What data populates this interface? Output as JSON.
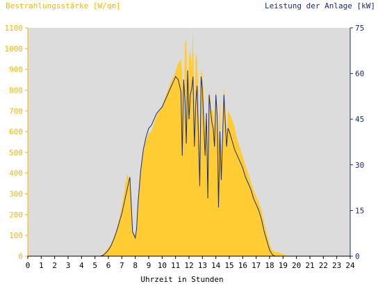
{
  "chart_data": {
    "type": "area",
    "left_title": "Bestrahlungsstärke [W/qm]",
    "right_title": "Leistung der Anlage [kW]",
    "xlabel": "Uhrzeit in Stunden",
    "x_ticks": [
      "0",
      "1",
      "2",
      "3",
      "4",
      "5",
      "6",
      "7",
      "8",
      "9",
      "10",
      "11",
      "12",
      "13",
      "14",
      "15",
      "16",
      "17",
      "18",
      "19",
      "20",
      "21",
      "22",
      "23",
      "24"
    ],
    "xlim": [
      0,
      24
    ],
    "y_left_ticks": [
      "0",
      "100",
      "200",
      "300",
      "400",
      "500",
      "600",
      "700",
      "800",
      "900",
      "1000",
      "1100"
    ],
    "y_left_lim": [
      0,
      1100
    ],
    "y_right_ticks": [
      "0",
      "15",
      "30",
      "45",
      "60",
      "75"
    ],
    "y_right_lim": [
      0,
      75
    ],
    "grid": false,
    "plot_background": "#dcdcdc",
    "series": [
      {
        "name": "Bestrahlungsstärke",
        "axis": "left",
        "kind": "area",
        "color": "#ffcc33",
        "x": [
          5.4,
          5.6,
          5.8,
          6.0,
          6.2,
          6.4,
          6.6,
          6.8,
          7.0,
          7.2,
          7.4,
          7.6,
          7.8,
          8.0,
          8.1,
          8.2,
          8.4,
          8.6,
          8.8,
          9.0,
          9.2,
          9.4,
          9.6,
          9.8,
          10.0,
          10.2,
          10.4,
          10.6,
          10.8,
          11.0,
          11.2,
          11.4,
          11.5,
          11.6,
          11.7,
          11.8,
          11.9,
          12.0,
          12.1,
          12.2,
          12.3,
          12.4,
          12.5,
          12.6,
          12.7,
          12.8,
          12.9,
          13.0,
          13.1,
          13.2,
          13.3,
          13.4,
          13.5,
          13.6,
          13.7,
          13.8,
          13.9,
          14.0,
          14.1,
          14.2,
          14.3,
          14.4,
          14.5,
          14.6,
          14.7,
          14.8,
          14.9,
          15.0,
          15.2,
          15.4,
          15.6,
          15.8,
          16.0,
          16.2,
          16.4,
          16.6,
          16.8,
          17.0,
          17.2,
          17.4,
          17.6,
          17.8,
          18.0,
          18.2,
          18.4,
          18.6,
          18.8,
          19.0,
          19.2,
          19.4,
          19.6
        ],
        "values": [
          0,
          10,
          25,
          40,
          60,
          90,
          130,
          180,
          240,
          320,
          400,
          350,
          120,
          100,
          150,
          250,
          420,
          500,
          560,
          590,
          600,
          640,
          680,
          700,
          720,
          760,
          800,
          830,
          860,
          890,
          930,
          950,
          880,
          600,
          1030,
          1050,
          700,
          950,
          1000,
          900,
          1100,
          700,
          980,
          950,
          800,
          500,
          900,
          880,
          760,
          600,
          700,
          400,
          800,
          760,
          700,
          700,
          600,
          800,
          700,
          560,
          760,
          450,
          600,
          820,
          700,
          600,
          700,
          690,
          660,
          620,
          560,
          520,
          480,
          440,
          400,
          360,
          320,
          290,
          260,
          220,
          160,
          110,
          60,
          30,
          20,
          20,
          15,
          10,
          5,
          0,
          0
        ]
      },
      {
        "name": "Leistung der Anlage",
        "axis": "right",
        "kind": "line",
        "color": "#1f2d6e",
        "x": [
          5.4,
          5.6,
          5.8,
          6.0,
          6.2,
          6.4,
          6.6,
          6.8,
          7.0,
          7.2,
          7.4,
          7.6,
          7.8,
          8.0,
          8.1,
          8.2,
          8.4,
          8.6,
          8.8,
          9.0,
          9.2,
          9.4,
          9.6,
          9.8,
          10.0,
          10.2,
          10.4,
          10.6,
          10.8,
          11.0,
          11.2,
          11.4,
          11.5,
          11.6,
          11.7,
          11.8,
          11.9,
          12.0,
          12.1,
          12.2,
          12.3,
          12.4,
          12.5,
          12.6,
          12.7,
          12.8,
          12.9,
          13.0,
          13.1,
          13.2,
          13.3,
          13.4,
          13.5,
          13.6,
          13.7,
          13.8,
          13.9,
          14.0,
          14.1,
          14.2,
          14.3,
          14.4,
          14.5,
          14.6,
          14.7,
          14.8,
          14.9,
          15.0,
          15.2,
          15.4,
          15.6,
          15.8,
          16.0,
          16.2,
          16.4,
          16.6,
          16.8,
          17.0,
          17.2,
          17.4,
          17.6,
          17.8,
          18.0,
          18.2,
          18.4,
          18.6,
          18.8,
          19.0,
          19.2,
          19.4,
          19.6
        ],
        "values": [
          0,
          0.3,
          1,
          2,
          3.5,
          5.5,
          8,
          11,
          14,
          18,
          22,
          26,
          8,
          6,
          9,
          17,
          28,
          35,
          39,
          42,
          43,
          45,
          47,
          48,
          49,
          51,
          53,
          55,
          57,
          59,
          58,
          54,
          33,
          58,
          51,
          37,
          61,
          45,
          53,
          55,
          59,
          36,
          50,
          56,
          40,
          23,
          59,
          55,
          43,
          33,
          47,
          19,
          53,
          48,
          44,
          42,
          36,
          53,
          46,
          16,
          41,
          25,
          39,
          53,
          44,
          36,
          42,
          41,
          38,
          35,
          33,
          31,
          29,
          26,
          24,
          22,
          19,
          17,
          15,
          12,
          8,
          5,
          2,
          0.5,
          0,
          0,
          0,
          0,
          0,
          0,
          0
        ]
      }
    ]
  }
}
